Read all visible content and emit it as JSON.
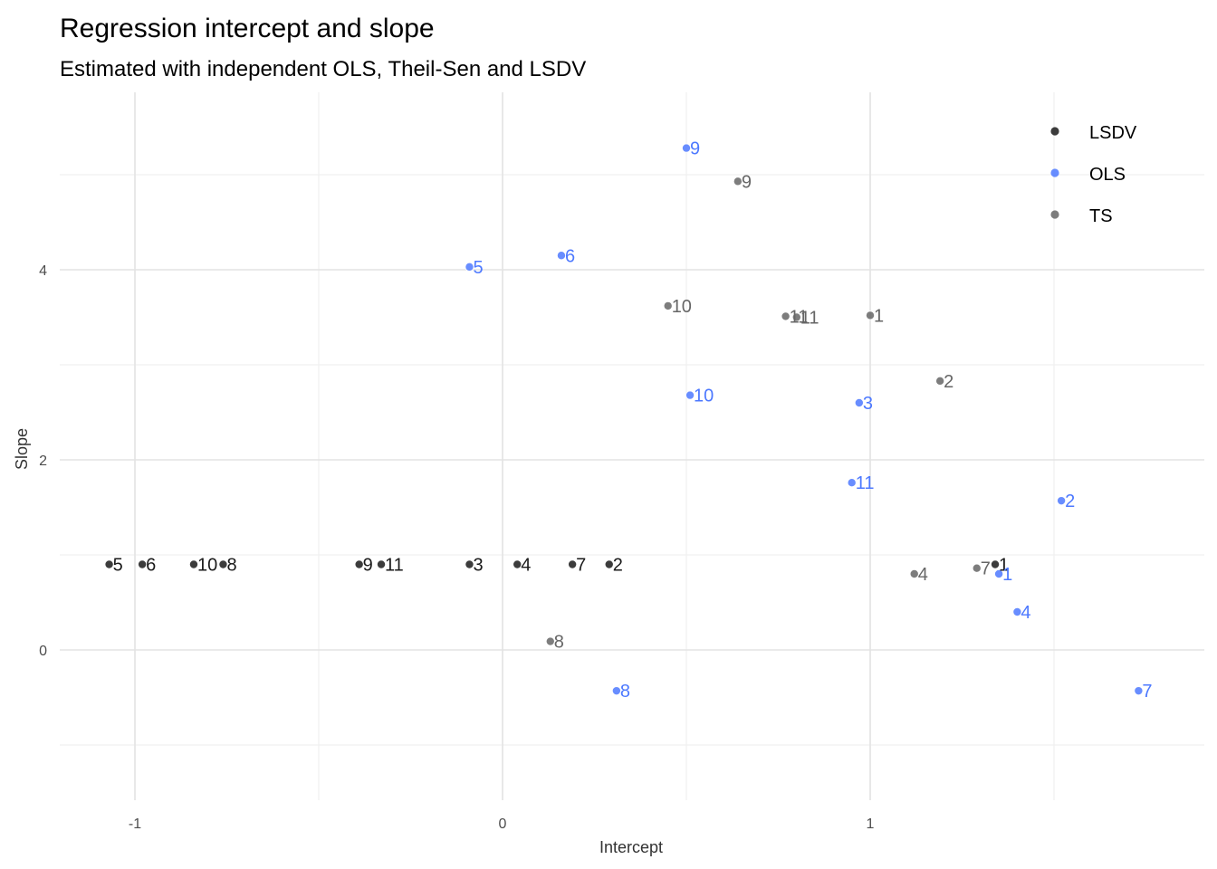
{
  "chart_data": {
    "type": "scatter",
    "title": "Regression intercept and slope",
    "subtitle": "Estimated with independent OLS, Theil-Sen and LSDV",
    "xlabel": "Intercept",
    "ylabel": "Slope",
    "xlim": [
      -1.2,
      1.85
    ],
    "ylim": [
      -1.55,
      5.9
    ],
    "x_ticks": [
      -1,
      0,
      1
    ],
    "y_ticks": [
      0,
      2,
      4
    ],
    "grid": true,
    "legend_position": "top-right",
    "colors": {
      "LSDV": "#1a1a1a",
      "OLS": "#4d79ff",
      "TS": "#666666"
    },
    "series": [
      {
        "name": "LSDV",
        "points": [
          {
            "label": "5",
            "x": -1.07,
            "y": 0.9
          },
          {
            "label": "6",
            "x": -0.98,
            "y": 0.9
          },
          {
            "label": "10",
            "x": -0.84,
            "y": 0.9
          },
          {
            "label": "8",
            "x": -0.76,
            "y": 0.9
          },
          {
            "label": "9",
            "x": -0.39,
            "y": 0.9
          },
          {
            "label": "11",
            "x": -0.33,
            "y": 0.9
          },
          {
            "label": "3",
            "x": -0.09,
            "y": 0.9
          },
          {
            "label": "4",
            "x": 0.04,
            "y": 0.9
          },
          {
            "label": "7",
            "x": 0.19,
            "y": 0.9
          },
          {
            "label": "2",
            "x": 0.29,
            "y": 0.9
          },
          {
            "label": "1",
            "x": 1.34,
            "y": 0.9
          }
        ]
      },
      {
        "name": "OLS",
        "points": [
          {
            "label": "9",
            "x": 0.5,
            "y": 5.28
          },
          {
            "label": "5",
            "x": -0.09,
            "y": 4.03
          },
          {
            "label": "6",
            "x": 0.16,
            "y": 4.15
          },
          {
            "label": "10",
            "x": 0.51,
            "y": 2.68
          },
          {
            "label": "3",
            "x": 0.97,
            "y": 2.6
          },
          {
            "label": "11",
            "x": 0.95,
            "y": 1.76
          },
          {
            "label": "2",
            "x": 1.52,
            "y": 1.57
          },
          {
            "label": "1",
            "x": 1.35,
            "y": 0.8
          },
          {
            "label": "4",
            "x": 1.4,
            "y": 0.4
          },
          {
            "label": "8",
            "x": 0.31,
            "y": -0.43
          },
          {
            "label": "7",
            "x": 1.73,
            "y": -0.43
          }
        ]
      },
      {
        "name": "TS",
        "points": [
          {
            "label": "9",
            "x": 0.64,
            "y": 4.93
          },
          {
            "label": "10",
            "x": 0.45,
            "y": 3.62
          },
          {
            "label": "11",
            "x": 0.8,
            "y": 3.5
          },
          {
            "label": "11",
            "x": 0.77,
            "y": 3.51
          },
          {
            "label": "1",
            "x": 1.0,
            "y": 3.52
          },
          {
            "label": "2",
            "x": 1.19,
            "y": 2.83
          },
          {
            "label": "4",
            "x": 1.12,
            "y": 0.8
          },
          {
            "label": "7",
            "x": 1.29,
            "y": 0.86
          },
          {
            "label": "8",
            "x": 0.13,
            "y": 0.09
          }
        ]
      }
    ]
  }
}
